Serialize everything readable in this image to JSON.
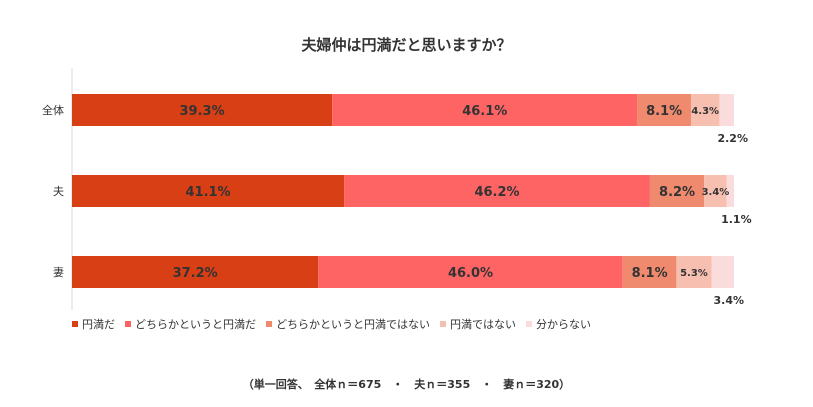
{
  "chart_data": {
    "type": "bar",
    "orientation": "horizontal",
    "stacked": true,
    "title": "夫婦仲は円満だと思いますか？",
    "categories": [
      "全体",
      "夫",
      "妻"
    ],
    "series": [
      {
        "name": "円満だ",
        "color": "#d83f14",
        "values": [
          39.3,
          41.1,
          37.2
        ],
        "labels": [
          "39.3%",
          "41.1%",
          "37.2%"
        ]
      },
      {
        "name": "どちらかというと円満だ",
        "color": "#ff6464",
        "values": [
          46.1,
          46.2,
          46.0
        ],
        "labels": [
          "46.1%",
          "46.2%",
          "46.0%"
        ]
      },
      {
        "name": "どちらかというと円満ではない",
        "color": "#ef8a6e",
        "values": [
          8.1,
          8.2,
          8.1
        ],
        "labels": [
          "8.1%",
          "8.2%",
          "8.1%"
        ]
      },
      {
        "name": "円満ではない",
        "color": "#f7bfb0",
        "values": [
          4.3,
          3.4,
          5.3
        ],
        "labels": [
          "4.3%",
          "3.4%",
          "5.3%"
        ]
      },
      {
        "name": "分からない",
        "color": "#fbdcdc",
        "values": [
          2.2,
          1.1,
          3.4
        ],
        "labels": [
          "2.2%",
          "1.1%",
          "3.4%"
        ]
      }
    ],
    "xlim": [
      0,
      100
    ],
    "legend_position": "bottom-left",
    "grid": false
  },
  "note": "（単一回答、　全体ｎ＝675　・　夫ｎ＝355　・　妻ｎ＝320）"
}
